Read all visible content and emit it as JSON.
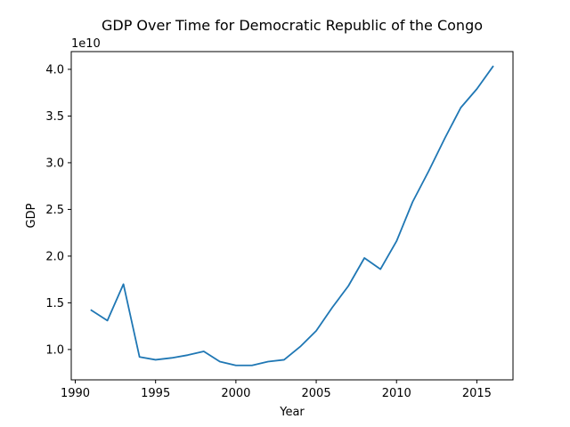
{
  "chart_data": {
    "type": "line",
    "title": "GDP Over Time for Democratic Republic of the Congo",
    "xlabel": "Year",
    "ylabel": "GDP",
    "y_scale_label": "1e10",
    "xlim": [
      1989.75,
      2017.25
    ],
    "ylim": [
      0.675,
      4.19
    ],
    "y_units": "1e10",
    "x_ticks": [
      1990,
      1995,
      2000,
      2005,
      2010,
      2015
    ],
    "x_tick_labels": [
      "1990",
      "1995",
      "2000",
      "2005",
      "2010",
      "2015"
    ],
    "y_ticks": [
      1.0,
      1.5,
      2.0,
      2.5,
      3.0,
      3.5,
      4.0
    ],
    "y_tick_labels": [
      "1.0",
      "1.5",
      "2.0",
      "2.5",
      "3.0",
      "3.5",
      "4.0"
    ],
    "grid": false,
    "series": [
      {
        "color": "#1f77b4",
        "x": [
          1991,
          1992,
          1993,
          1994,
          1995,
          1996,
          1997,
          1998,
          1999,
          2000,
          2001,
          2002,
          2003,
          2004,
          2005,
          2006,
          2007,
          2008,
          2009,
          2010,
          2011,
          2012,
          2013,
          2014,
          2015,
          2016
        ],
        "y": [
          1.42,
          1.31,
          1.7,
          0.92,
          0.89,
          0.91,
          0.94,
          0.98,
          0.87,
          0.83,
          0.83,
          0.87,
          0.89,
          1.03,
          1.2,
          1.45,
          1.68,
          1.98,
          1.86,
          2.16,
          2.58,
          2.91,
          3.26,
          3.59,
          3.79,
          4.03
        ]
      }
    ]
  }
}
